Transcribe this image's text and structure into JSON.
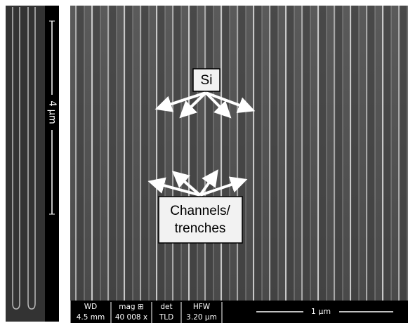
{
  "left_panel": {
    "scale_label": "4 µm"
  },
  "right_panel": {
    "labels": {
      "si": "Si",
      "channels": [
        "Channels/",
        "trenches"
      ]
    },
    "info_bar": {
      "columns": [
        {
          "header": "WD",
          "value": "4.5 mm"
        },
        {
          "header": "mag ⊞",
          "value": "40 008 x"
        },
        {
          "header": "det",
          "value": "TLD"
        },
        {
          "header": "HFW",
          "value": "3.20 µm"
        }
      ],
      "scale_label": "1 µm"
    }
  }
}
